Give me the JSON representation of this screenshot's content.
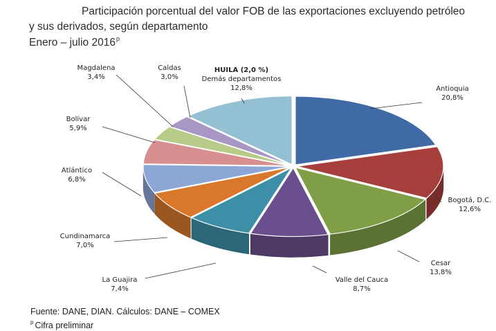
{
  "header": {
    "title_line1": "Participación porcentual del valor FOB de las exportaciones excluyendo petróleo",
    "title_line2": "y sus derivados, según departamento",
    "period": "Enero – julio 2016",
    "period_sup": "p"
  },
  "footer": {
    "source": "Fuente: DANE, DIAN. Cálculos: DANE – COMEX",
    "note_sup": "p",
    "note": "Cifra preliminar"
  },
  "chart_data": {
    "type": "pie",
    "style": "3d-exploded-top",
    "annotation": "HUILA (2,0 %)",
    "slices": [
      {
        "name": "Antioquia",
        "value": 20.8,
        "value_label": "20,8%",
        "color": "#3f6aa6"
      },
      {
        "name": "Bogotá, D.C.",
        "value": 12.6,
        "value_label": "12,6%",
        "color": "#a63e3b"
      },
      {
        "name": "Cesar",
        "value": 13.8,
        "value_label": "13,8%",
        "color": "#7f9e45"
      },
      {
        "name": "Valle del Cauca",
        "value": 8.7,
        "value_label": "8,7%",
        "color": "#6a4f8e"
      },
      {
        "name": "La Guajira",
        "value": 7.4,
        "value_label": "7,4%",
        "color": "#3c8fa6"
      },
      {
        "name": "Cundinamarca",
        "value": 7.0,
        "value_label": "7,0%",
        "color": "#d9782b"
      },
      {
        "name": "Atlántico",
        "value": 6.8,
        "value_label": "6,8%",
        "color": "#8ca6d6"
      },
      {
        "name": "Bolívar",
        "value": 5.9,
        "value_label": "5,9%",
        "color": "#d88f8f"
      },
      {
        "name": "Magdalena",
        "value": 3.4,
        "value_label": "3,4%",
        "color": "#b8cc8a"
      },
      {
        "name": "Caldas",
        "value": 3.0,
        "value_label": "3,0%",
        "color": "#a897c4"
      },
      {
        "name": "Demás departamentos",
        "value": 12.8,
        "value_label": "12,8%",
        "color": "#94c0d3"
      }
    ]
  }
}
